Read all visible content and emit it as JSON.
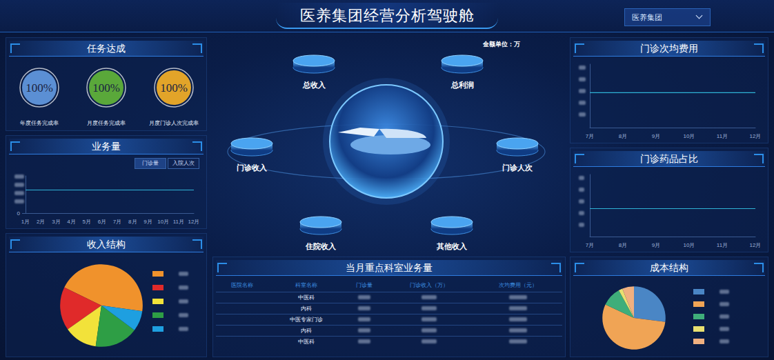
{
  "header": {
    "title": "医养集团经营分析驾驶舱",
    "selector": "医养集团"
  },
  "task": {
    "title": "任务达成",
    "items": [
      {
        "value": 100,
        "label": "100%",
        "caption": "年度任务完成率",
        "color": "#5b8fd4"
      },
      {
        "value": 100,
        "label": "100%",
        "caption": "月度任务完成率",
        "color": "#5aa83a"
      },
      {
        "value": 100,
        "label": "100%",
        "caption": "月度门诊人次完成率",
        "color": "#e2a429"
      }
    ]
  },
  "center": {
    "unit_note": "金额单位：万",
    "items": [
      "总收入",
      "总利润",
      "门诊收入",
      "门诊人次",
      "住院收入",
      "其他收入"
    ]
  },
  "table": {
    "title": "当月重点科室业务量",
    "columns": [
      "医院名称",
      "科室名称",
      "门诊量",
      "门诊收入（万）",
      "次均费用（元）"
    ],
    "departments": [
      "中医科",
      "内科",
      "中医专家门诊",
      "内科",
      "中医科"
    ]
  },
  "chart_data": [
    {
      "type": "line",
      "title": "业务量",
      "tabs": [
        "门诊量",
        "入院人次"
      ],
      "categories": [
        "1月",
        "2月",
        "3月",
        "4月",
        "5月",
        "6月",
        "7月",
        "8月",
        "9月",
        "10月",
        "11月",
        "12月"
      ],
      "values": [
        62,
        62,
        62,
        62,
        62,
        62,
        62,
        62,
        62,
        62,
        62,
        62
      ],
      "color": "#2fb3d6",
      "ylim": [
        0,
        100
      ],
      "yticks": [
        0
      ],
      "grid": false
    },
    {
      "type": "pie",
      "title": "收入结构",
      "values": [
        45,
        17,
        13,
        17,
        8
      ],
      "colors": [
        "#f0922c",
        "#e02a2a",
        "#f2e23a",
        "#2e9e45",
        "#1e9fe0"
      ]
    },
    {
      "type": "line",
      "title": "门诊次均费用",
      "categories": [
        "7月",
        "8月",
        "9月",
        "10月",
        "11月",
        "12月"
      ],
      "values": [
        55,
        55,
        55,
        55,
        55,
        55
      ],
      "color": "#2fb3d6",
      "ylim": [
        0,
        100
      ],
      "yticks": [],
      "grid": false,
      "tick_labels": "x"
    },
    {
      "type": "line",
      "title": "门诊药品占比",
      "categories": [
        "7月",
        "8月",
        "9月",
        "10月",
        "11月",
        "12月"
      ],
      "values": [
        45,
        45,
        45,
        45,
        45,
        45
      ],
      "color": "#2fb3d6",
      "ylim": [
        0,
        100
      ],
      "yticks": [],
      "grid": false,
      "tick_labels": "x"
    },
    {
      "type": "pie",
      "title": "成本结构",
      "values": [
        27,
        55,
        10,
        2,
        6
      ],
      "colors": [
        "#4a86c5",
        "#f0a455",
        "#3fae7a",
        "#e8e070",
        "#f0b080"
      ]
    }
  ]
}
